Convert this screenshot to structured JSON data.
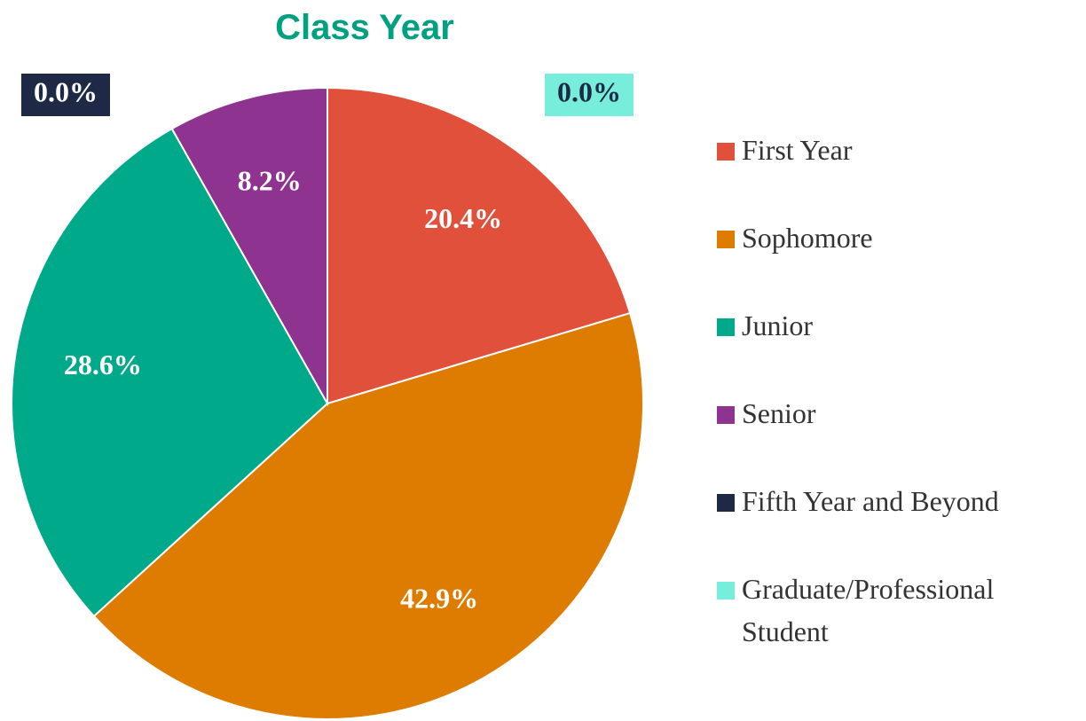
{
  "chart_data": {
    "type": "pie",
    "title": "Class Year",
    "categories": [
      "First Year",
      "Sophomore",
      "Junior",
      "Senior",
      "Fifth Year and Beyond",
      "Graduate/Professional Student"
    ],
    "values": [
      20.4,
      42.9,
      28.6,
      8.2,
      0.0,
      0.0
    ],
    "value_labels": [
      "20.4%",
      "42.9%",
      "28.6%",
      "8.2%",
      "0.0%",
      "0.0%"
    ],
    "colors": [
      "#e0503a",
      "#dd7c00",
      "#00a98a",
      "#8e3390",
      "#1e2a45",
      "#76eedb"
    ],
    "legend": "right"
  }
}
